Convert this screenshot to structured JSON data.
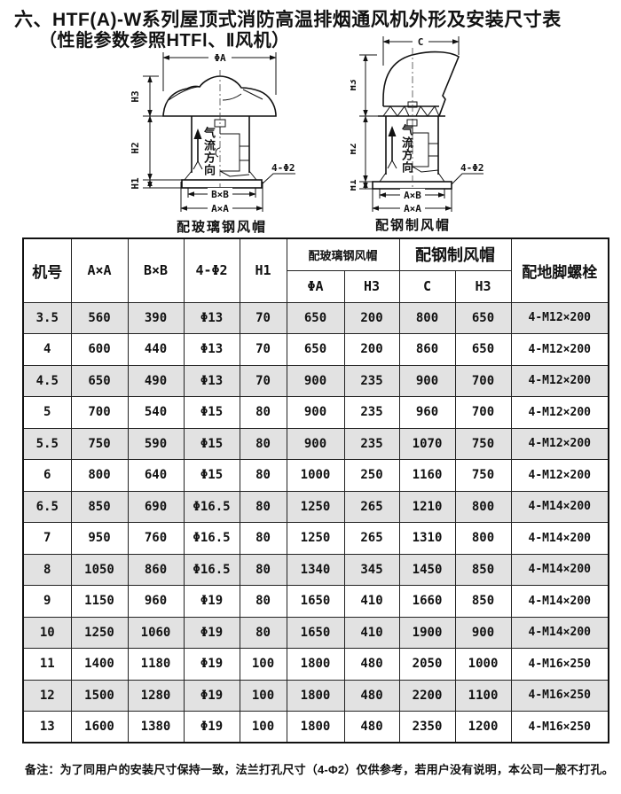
{
  "title": {
    "line1": "六、HTF(A)-W系列屋顶式消防高温排烟通风机外形及安装尺寸表",
    "line2": "（性能参数参照HTFⅠ、Ⅱ风机）"
  },
  "diagrams": {
    "left": {
      "caption": "配玻璃钢风帽",
      "labels": {
        "top_dim": "ΦA",
        "h3": "H3",
        "h2": "H2",
        "h1": "H1",
        "inner_dim": "B×B",
        "outer_dim": "A×A",
        "holes": "4-Φ2",
        "airflow": "气流方向"
      }
    },
    "right": {
      "caption": "配钢制风帽",
      "labels": {
        "top_dim": "C",
        "h3": "H3",
        "h2": "H2",
        "h1": "H1",
        "inner_dim": "A×B",
        "outer_dim": "A×A",
        "holes": "4-Φ2",
        "airflow": "气流方向"
      }
    }
  },
  "table": {
    "headers": {
      "model": "机号",
      "axa": "A×A",
      "bxb": "B×B",
      "holes": "4-Φ2",
      "h1": "H1",
      "group_fiberglass": "配玻璃钢风帽",
      "phi_a": "ΦA",
      "h3_fiberglass": "H3",
      "group_steel": "配钢制风帽",
      "c": "C",
      "h3_steel": "H3",
      "anchor": "配地脚螺栓"
    },
    "rows": [
      [
        "3.5",
        "560",
        "390",
        "Φ13",
        "70",
        "650",
        "200",
        "800",
        "650",
        "4-M12×200"
      ],
      [
        "4",
        "600",
        "440",
        "Φ13",
        "70",
        "650",
        "200",
        "860",
        "650",
        "4-M12×200"
      ],
      [
        "4.5",
        "650",
        "490",
        "Φ13",
        "70",
        "900",
        "235",
        "900",
        "700",
        "4-M12×200"
      ],
      [
        "5",
        "700",
        "540",
        "Φ15",
        "80",
        "900",
        "235",
        "960",
        "700",
        "4-M12×200"
      ],
      [
        "5.5",
        "750",
        "590",
        "Φ15",
        "80",
        "900",
        "235",
        "1070",
        "750",
        "4-M12×200"
      ],
      [
        "6",
        "800",
        "640",
        "Φ15",
        "80",
        "1000",
        "250",
        "1160",
        "750",
        "4-M12×200"
      ],
      [
        "6.5",
        "850",
        "690",
        "Φ16.5",
        "80",
        "1250",
        "265",
        "1210",
        "800",
        "4-M14×200"
      ],
      [
        "7",
        "950",
        "760",
        "Φ16.5",
        "80",
        "1250",
        "265",
        "1310",
        "800",
        "4-M14×200"
      ],
      [
        "8",
        "1050",
        "860",
        "Φ16.5",
        "80",
        "1340",
        "345",
        "1450",
        "850",
        "4-M14×200"
      ],
      [
        "9",
        "1150",
        "960",
        "Φ19",
        "80",
        "1650",
        "410",
        "1660",
        "850",
        "4-M14×200"
      ],
      [
        "10",
        "1250",
        "1060",
        "Φ19",
        "80",
        "1650",
        "410",
        "1900",
        "900",
        "4-M14×200"
      ],
      [
        "11",
        "1400",
        "1180",
        "Φ19",
        "100",
        "1800",
        "480",
        "2050",
        "1000",
        "4-M16×250"
      ],
      [
        "12",
        "1500",
        "1280",
        "Φ19",
        "100",
        "1800",
        "480",
        "2200",
        "1100",
        "4-M16×250"
      ],
      [
        "13",
        "1600",
        "1380",
        "Φ19",
        "100",
        "1800",
        "480",
        "2350",
        "1200",
        "4-M16×250"
      ]
    ]
  },
  "note": "备注：为了同用户的安装尺寸保持一致，法兰打孔尺寸（4-Φ2）仅供参考，若用户没有说明，本公司一般不打孔。",
  "colors": {
    "row_alt": "#e2e2e2",
    "line": "#111111",
    "background": "#ffffff"
  }
}
